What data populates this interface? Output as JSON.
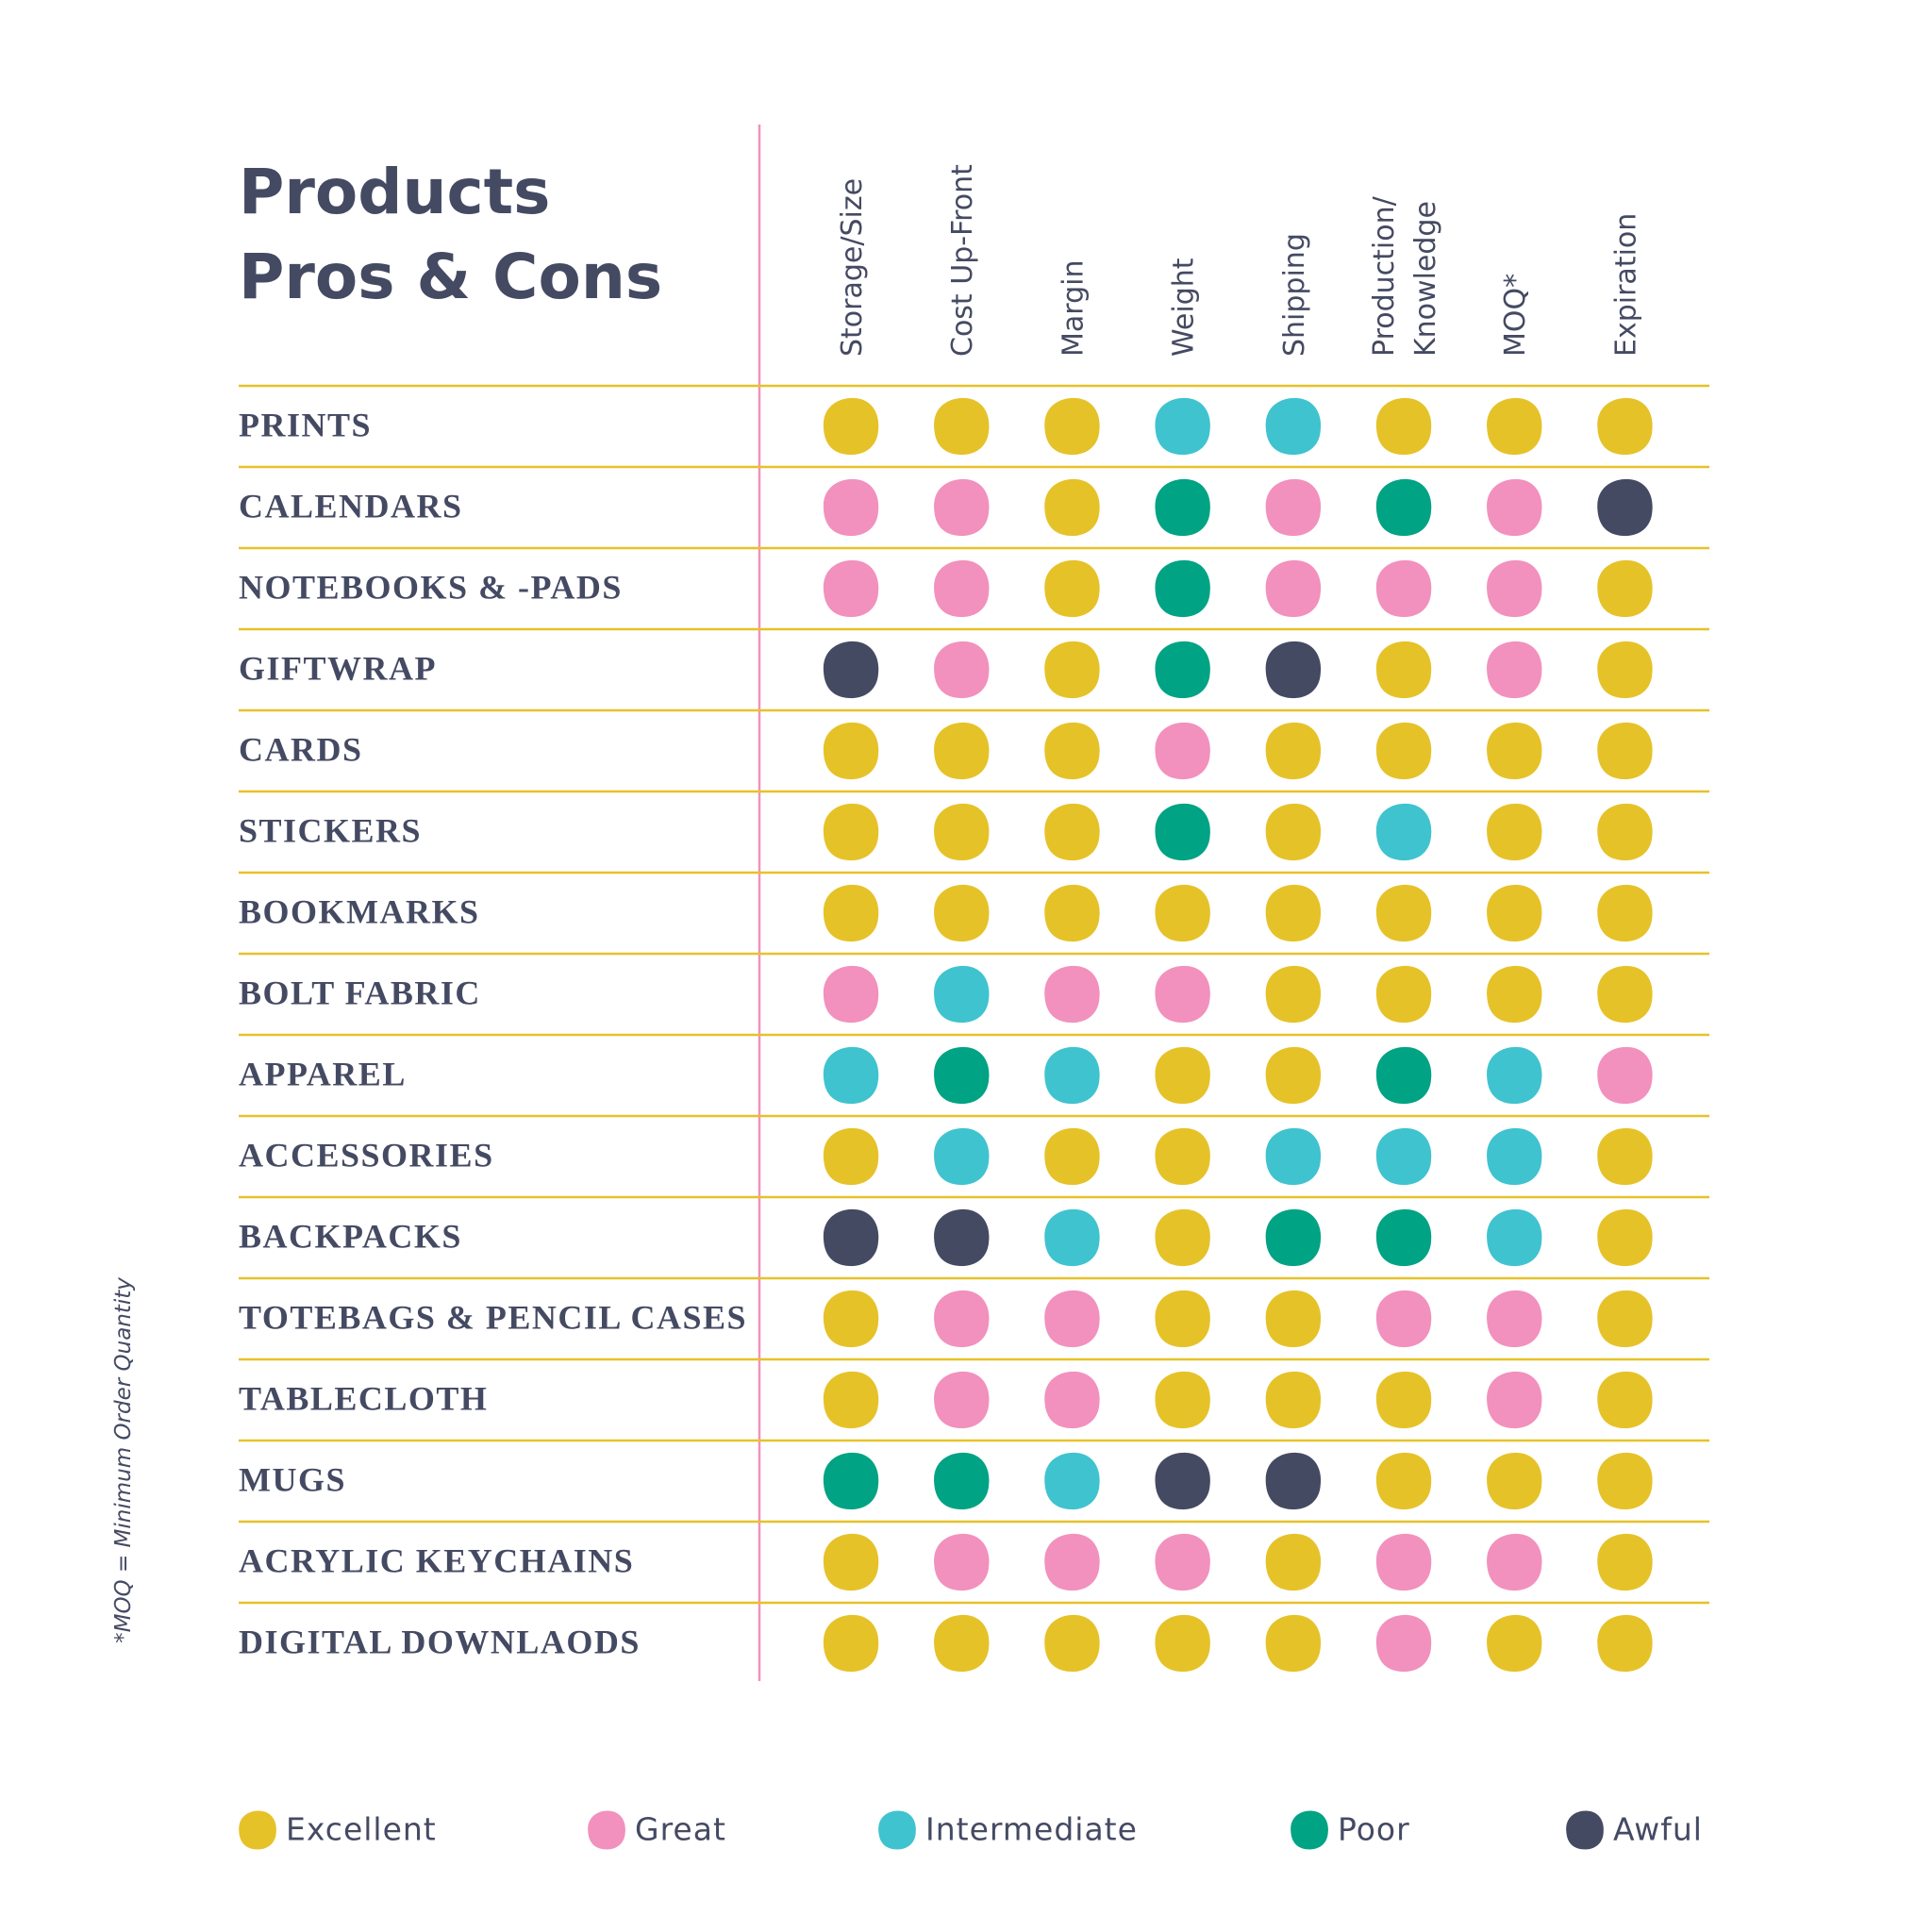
{
  "title": [
    "Products",
    "Pros & Cons"
  ],
  "columns": [
    [
      "Storage/Size"
    ],
    [
      "Cost Up-Front"
    ],
    [
      "Margin"
    ],
    [
      "Weight"
    ],
    [
      "Shipping"
    ],
    [
      "Production/",
      "Knowledge"
    ],
    [
      "MOQ*"
    ],
    [
      "Expiration"
    ]
  ],
  "rows": [
    {
      "label": "PRINTS",
      "cells": [
        "Excellent",
        "Excellent",
        "Excellent",
        "Intermediate",
        "Intermediate",
        "Excellent",
        "Excellent",
        "Excellent"
      ]
    },
    {
      "label": "CALENDARS",
      "cells": [
        "Great",
        "Great",
        "Excellent",
        "Poor",
        "Great",
        "Poor",
        "Great",
        "Awful"
      ]
    },
    {
      "label": "NOTEBOOKS & -PADS",
      "cells": [
        "Great",
        "Great",
        "Excellent",
        "Poor",
        "Great",
        "Great",
        "Great",
        "Excellent"
      ]
    },
    {
      "label": "GIFTWRAP",
      "cells": [
        "Awful",
        "Great",
        "Excellent",
        "Poor",
        "Awful",
        "Excellent",
        "Great",
        "Excellent"
      ]
    },
    {
      "label": "CARDS",
      "cells": [
        "Excellent",
        "Excellent",
        "Excellent",
        "Great",
        "Excellent",
        "Excellent",
        "Excellent",
        "Excellent"
      ]
    },
    {
      "label": "STICKERS",
      "cells": [
        "Excellent",
        "Excellent",
        "Excellent",
        "Poor",
        "Excellent",
        "Intermediate",
        "Excellent",
        "Excellent"
      ]
    },
    {
      "label": "BOOKMARKS",
      "cells": [
        "Excellent",
        "Excellent",
        "Excellent",
        "Excellent",
        "Excellent",
        "Excellent",
        "Excellent",
        "Excellent"
      ]
    },
    {
      "label": "BOLT FABRIC",
      "cells": [
        "Great",
        "Intermediate",
        "Great",
        "Great",
        "Excellent",
        "Excellent",
        "Excellent",
        "Excellent"
      ]
    },
    {
      "label": "APPAREL",
      "cells": [
        "Intermediate",
        "Poor",
        "Intermediate",
        "Excellent",
        "Excellent",
        "Poor",
        "Intermediate",
        "Great"
      ]
    },
    {
      "label": "ACCESSORIES",
      "cells": [
        "Excellent",
        "Intermediate",
        "Excellent",
        "Excellent",
        "Intermediate",
        "Intermediate",
        "Intermediate",
        "Excellent"
      ]
    },
    {
      "label": "BACKPACKS",
      "cells": [
        "Awful",
        "Awful",
        "Intermediate",
        "Excellent",
        "Poor",
        "Poor",
        "Intermediate",
        "Excellent"
      ]
    },
    {
      "label": "TOTEBAGS & PENCIL CASES",
      "cells": [
        "Excellent",
        "Great",
        "Great",
        "Excellent",
        "Excellent",
        "Great",
        "Great",
        "Excellent"
      ]
    },
    {
      "label": "TABLECLOTH",
      "cells": [
        "Excellent",
        "Great",
        "Great",
        "Excellent",
        "Excellent",
        "Excellent",
        "Great",
        "Excellent"
      ]
    },
    {
      "label": "MUGS",
      "cells": [
        "Poor",
        "Poor",
        "Intermediate",
        "Awful",
        "Awful",
        "Excellent",
        "Excellent",
        "Excellent"
      ]
    },
    {
      "label": "ACRYLIC KEYCHAINS",
      "cells": [
        "Excellent",
        "Great",
        "Great",
        "Great",
        "Excellent",
        "Great",
        "Great",
        "Excellent"
      ]
    },
    {
      "label": "DIGITAL DOWNLAODS",
      "cells": [
        "Excellent",
        "Excellent",
        "Excellent",
        "Excellent",
        "Excellent",
        "Great",
        "Excellent",
        "Excellent"
      ]
    }
  ],
  "legend": [
    {
      "label": "Excellent",
      "color": "#e6c229"
    },
    {
      "label": "Great",
      "color": "#f291bd"
    },
    {
      "label": "Intermediate",
      "color": "#3fc3cf"
    },
    {
      "label": "Poor",
      "color": "#00a383"
    },
    {
      "label": "Awful",
      "color": "#454a63"
    }
  ],
  "footnote": "*MOQ = Minimum Order Quantity"
}
